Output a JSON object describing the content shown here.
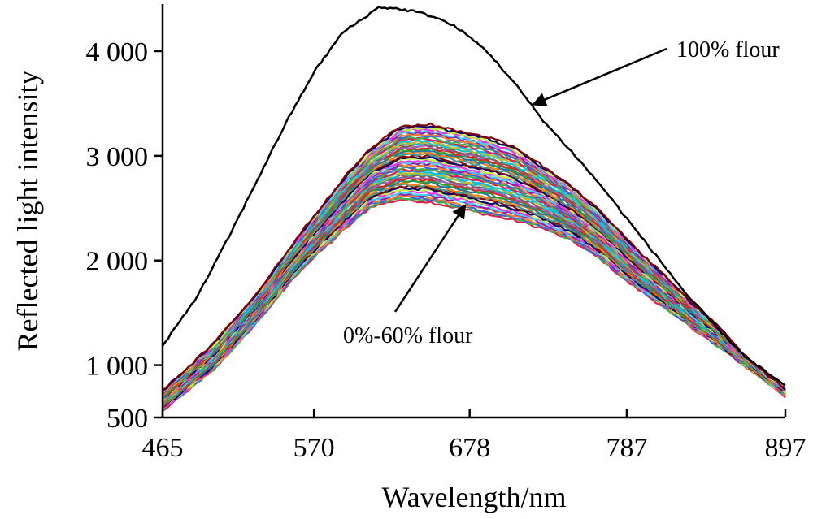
{
  "chart_data": {
    "type": "line",
    "xlabel": "Wavelength/nm",
    "ylabel": "Reflected light intensity",
    "xlim": [
      465,
      897
    ],
    "ylim": [
      500,
      4450
    ],
    "x_ticks": [
      465,
      570,
      678,
      787,
      897
    ],
    "x_tick_labels": [
      "465",
      "570",
      "678",
      "787",
      "897"
    ],
    "y_ticks": [
      500,
      1000,
      2000,
      3000,
      4000
    ],
    "y_tick_labels": [
      "500",
      "1 000",
      "2 000",
      "3 000",
      "4 000"
    ],
    "grid": false,
    "legend": "none",
    "annotations": [
      {
        "text": "100% flour",
        "points_to": [
          722,
          3490
        ]
      },
      {
        "text": "0%-60% flour",
        "points_to": [
          675,
          2530
        ]
      }
    ],
    "reference_curve": {
      "label": "100% flour",
      "color": "#000000",
      "points": [
        [
          465,
          1180
        ],
        [
          490,
          1680
        ],
        [
          510,
          2200
        ],
        [
          530,
          2750
        ],
        [
          550,
          3300
        ],
        [
          570,
          3800
        ],
        [
          590,
          4180
        ],
        [
          605,
          4320
        ],
        [
          615,
          4420
        ],
        [
          625,
          4410
        ],
        [
          640,
          4380
        ],
        [
          655,
          4320
        ],
        [
          670,
          4220
        ],
        [
          690,
          4000
        ],
        [
          710,
          3680
        ],
        [
          730,
          3320
        ],
        [
          750,
          3020
        ],
        [
          770,
          2700
        ],
        [
          787,
          2400
        ],
        [
          810,
          2000
        ],
        [
          830,
          1650
        ],
        [
          850,
          1350
        ],
        [
          870,
          1070
        ],
        [
          885,
          920
        ],
        [
          897,
          800
        ]
      ]
    },
    "bundle": {
      "label": "0%-60% flour",
      "count": 50,
      "colors": [
        "#e6194b",
        "#3cb44b",
        "#4363d8",
        "#f58231",
        "#911eb4",
        "#42d4f4",
        "#f032e6",
        "#bfef45",
        "#000075",
        "#800000",
        "#469990",
        "#ff7f0e",
        "#1f77b4",
        "#2ca02c",
        "#d62728",
        "#9467bd",
        "#8c564b",
        "#17becf",
        "#bcbd22",
        "#00bfff"
      ],
      "top_envelope": [
        [
          465,
          760
        ],
        [
          500,
          1200
        ],
        [
          530,
          1680
        ],
        [
          560,
          2250
        ],
        [
          590,
          2780
        ],
        [
          610,
          3080
        ],
        [
          630,
          3280
        ],
        [
          650,
          3300
        ],
        [
          670,
          3240
        ],
        [
          690,
          3180
        ],
        [
          710,
          3080
        ],
        [
          730,
          2890
        ],
        [
          750,
          2700
        ],
        [
          770,
          2450
        ],
        [
          787,
          2200
        ],
        [
          810,
          1900
        ],
        [
          830,
          1620
        ],
        [
          850,
          1380
        ],
        [
          870,
          1080
        ],
        [
          885,
          900
        ],
        [
          897,
          780
        ]
      ],
      "bottom_envelope": [
        [
          465,
          560
        ],
        [
          500,
          950
        ],
        [
          530,
          1400
        ],
        [
          560,
          1900
        ],
        [
          590,
          2280
        ],
        [
          610,
          2520
        ],
        [
          630,
          2580
        ],
        [
          650,
          2560
        ],
        [
          670,
          2500
        ],
        [
          690,
          2440
        ],
        [
          710,
          2380
        ],
        [
          730,
          2300
        ],
        [
          750,
          2180
        ],
        [
          770,
          2000
        ],
        [
          787,
          1800
        ],
        [
          810,
          1580
        ],
        [
          830,
          1380
        ],
        [
          850,
          1180
        ],
        [
          870,
          980
        ],
        [
          885,
          830
        ],
        [
          897,
          700
        ]
      ]
    }
  }
}
